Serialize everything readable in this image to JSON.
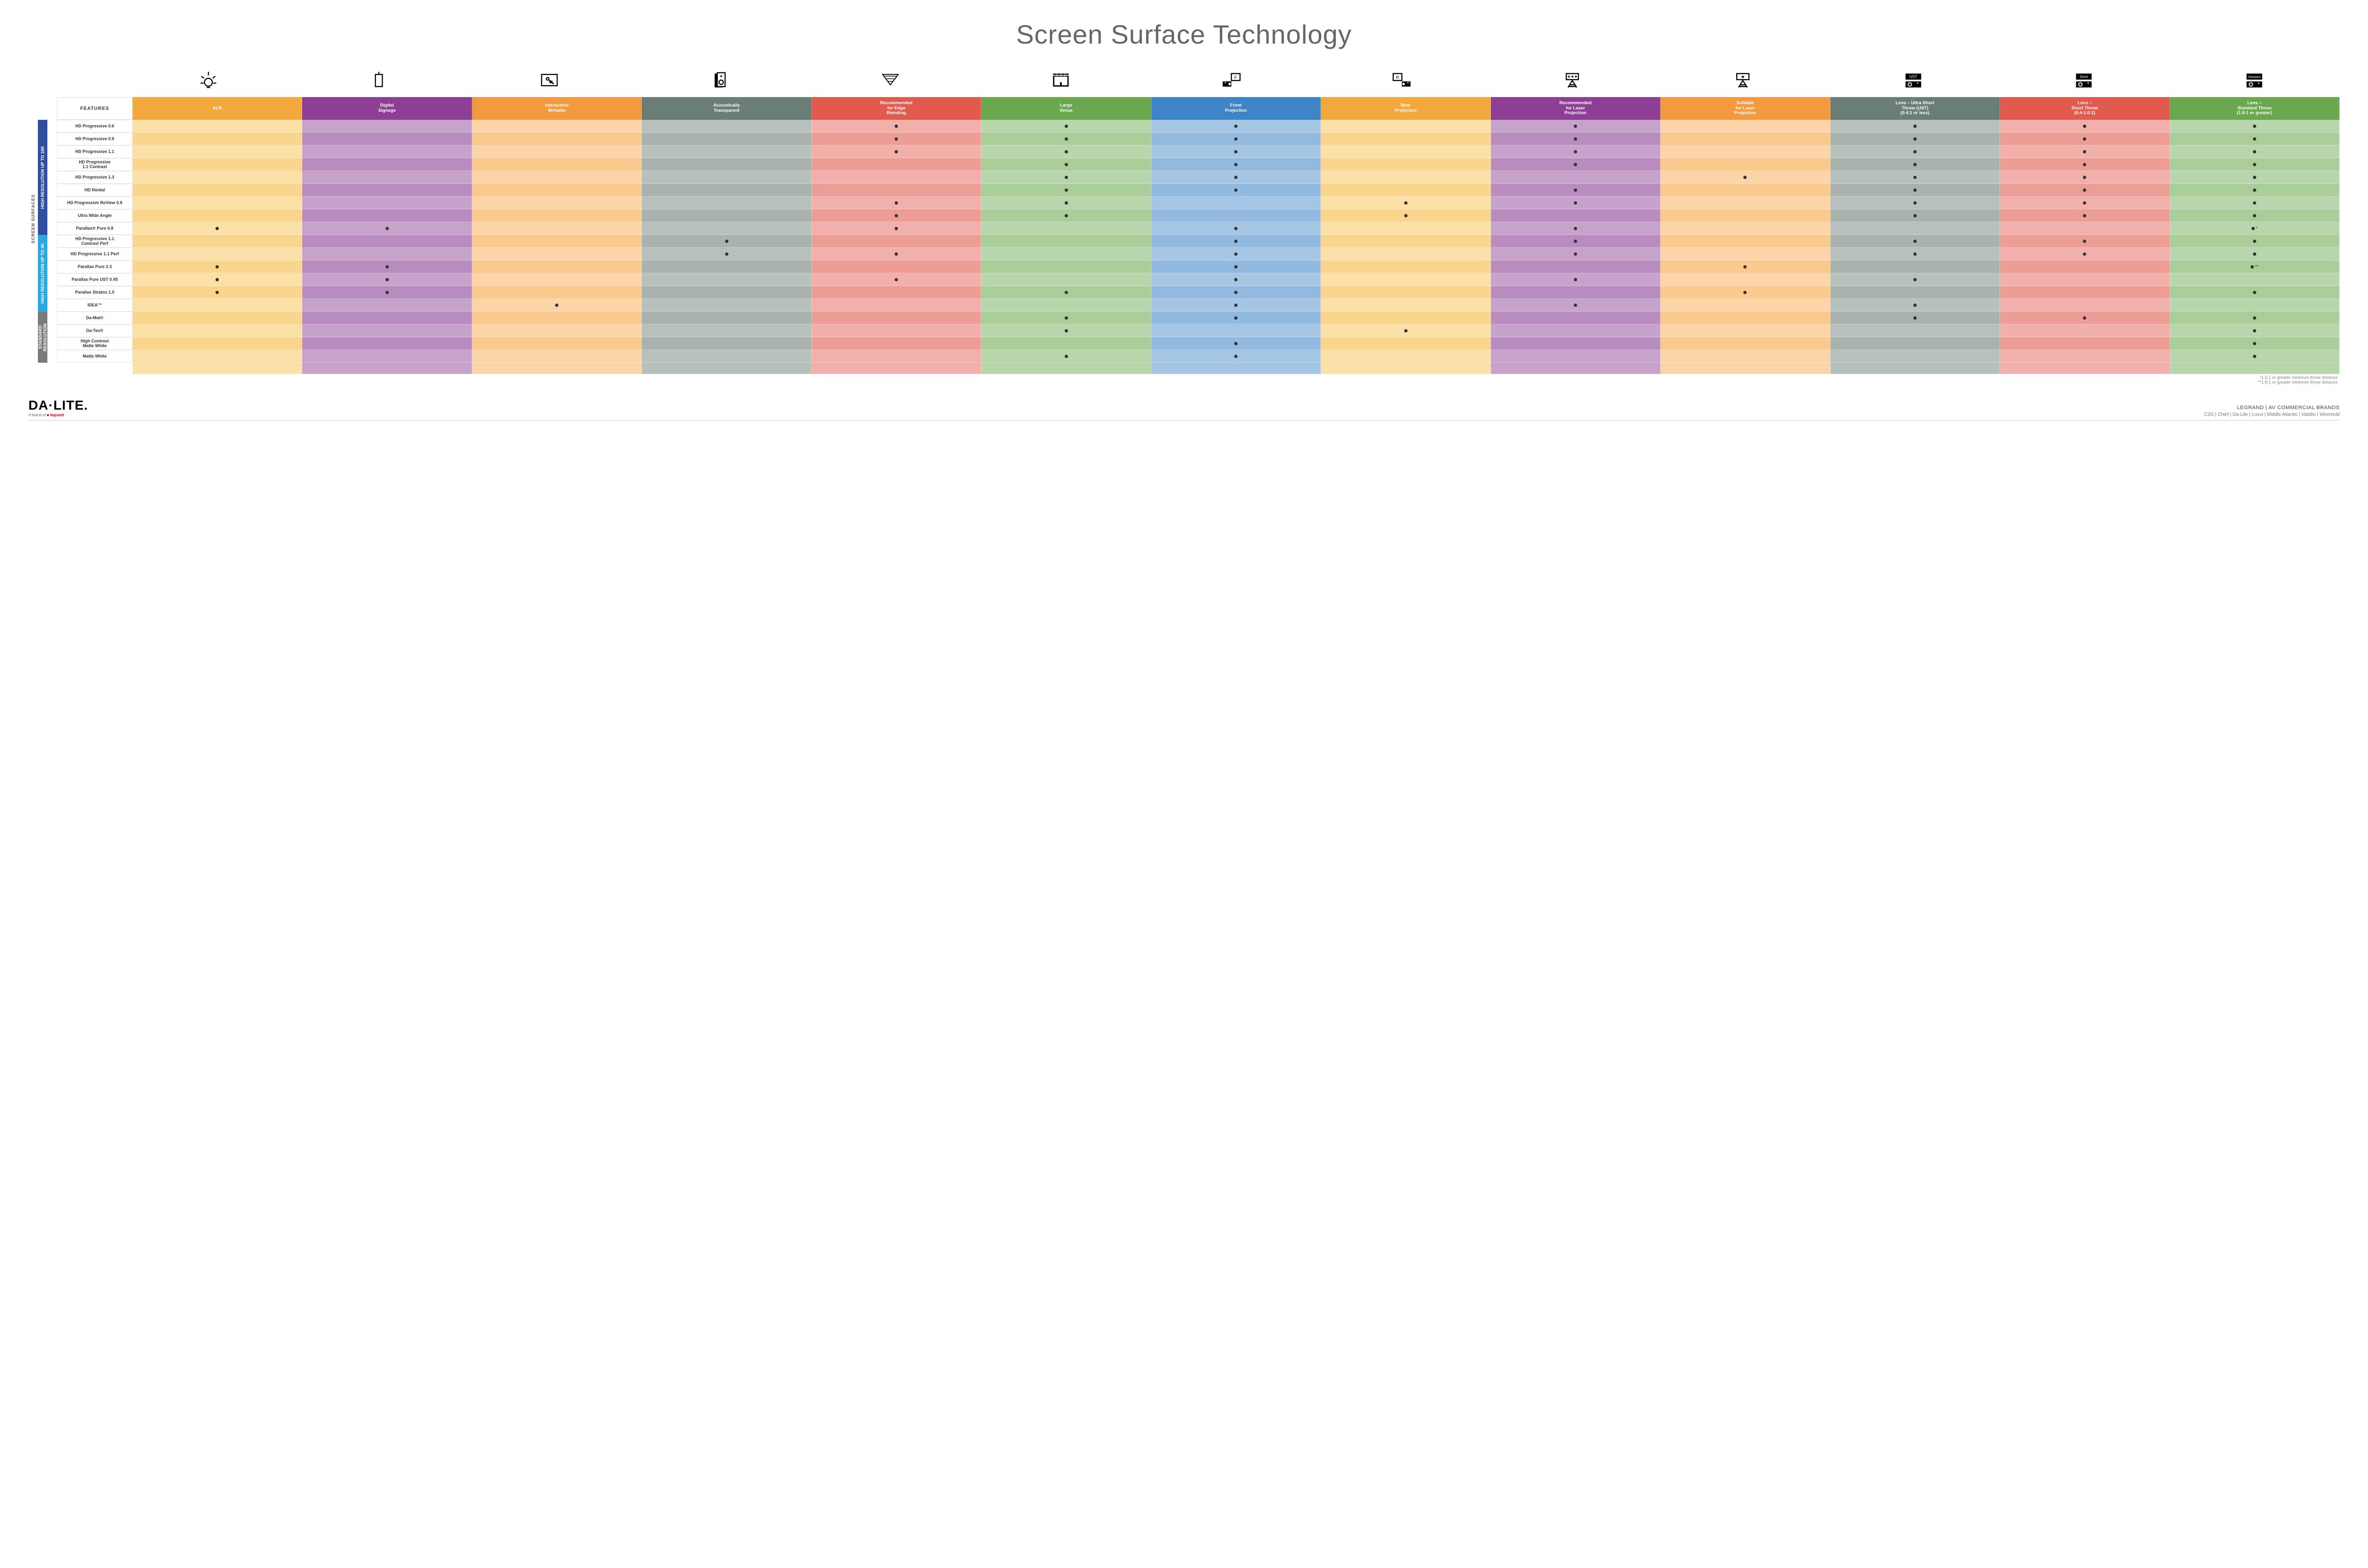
{
  "title": "Screen Surface Technology",
  "features_label": "FEATURES",
  "outer_side_label": "SCREEN SURFACES",
  "columns": [
    {
      "id": "alr",
      "label": "ALR",
      "bg": "#f2a83c",
      "shades": [
        "#fbe0a7",
        "#f9d58e"
      ],
      "icon": "bulb"
    },
    {
      "id": "signage",
      "label": "Digital\nSignage",
      "bg": "#8e3e95",
      "shades": [
        "#c7a2cb",
        "#b98cbf"
      ],
      "icon": "sign"
    },
    {
      "id": "interactive",
      "label": "Interactive/\nWritable",
      "bg": "#f39a3e",
      "shades": [
        "#fbd5a7",
        "#f9c98e"
      ],
      "icon": "touch"
    },
    {
      "id": "acoustic",
      "label": "Acoustically\nTransparent",
      "bg": "#6b7d77",
      "shades": [
        "#b7c0bc",
        "#a8b3ae"
      ],
      "icon": "speaker"
    },
    {
      "id": "edge",
      "label": "Recommended\nfor Edge\nBlending",
      "bg": "#e05a4e",
      "shades": [
        "#f1b0a9",
        "#ec9e96"
      ],
      "icon": "blend"
    },
    {
      "id": "venue",
      "label": "Large\nVenue",
      "bg": "#6aa84f",
      "shades": [
        "#b8d6ab",
        "#aace9a"
      ],
      "icon": "stage"
    },
    {
      "id": "front",
      "label": "Front\nProjection",
      "bg": "#3d85c6",
      "shades": [
        "#a4c5e4",
        "#92b9de"
      ],
      "icon": "front"
    },
    {
      "id": "rear",
      "label": "Rear\nProjection",
      "bg": "#f2a83c",
      "shades": [
        "#fbe0a7",
        "#f9d58e"
      ],
      "icon": "rear"
    },
    {
      "id": "reclaser",
      "label": "Recommended\nfor Laser\nProjection",
      "bg": "#8e3e95",
      "shades": [
        "#c7a2cb",
        "#b98cbf"
      ],
      "icon": "laser3"
    },
    {
      "id": "suitlaser",
      "label": "Suitable\nfor Laser\nProjection",
      "bg": "#f39a3e",
      "shades": [
        "#fbd5a7",
        "#f9c98e"
      ],
      "icon": "laser1"
    },
    {
      "id": "ust",
      "label": "Lens – Ultra Short\nThrow (UST)\n(0.4:1 or less)",
      "bg": "#6b7d77",
      "shades": [
        "#b7c0bc",
        "#a8b3ae"
      ],
      "icon": "ust"
    },
    {
      "id": "short",
      "label": "Lens –\nShort Throw\n(0.4-1.0:1)",
      "bg": "#e05a4e",
      "shades": [
        "#f1b0a9",
        "#ec9e96"
      ],
      "icon": "short"
    },
    {
      "id": "std",
      "label": "Lens –\nStandard Throw\n(1.0:1 or greater)",
      "bg": "#6aa84f",
      "shades": [
        "#b8d6ab",
        "#aace9a"
      ],
      "icon": "standard"
    }
  ],
  "groups": [
    {
      "label": "HIGH RESOLUTION UP TO 16K",
      "bg": "#2f4f9e",
      "rows": [
        {
          "name": "HD Progressive 0.6",
          "marks": {
            "edge": 1,
            "venue": 1,
            "front": 1,
            "reclaser": 1,
            "ust": 1,
            "short": 1,
            "std": 1
          }
        },
        {
          "name": "HD Progressive 0.9",
          "marks": {
            "edge": 1,
            "venue": 1,
            "front": 1,
            "reclaser": 1,
            "ust": 1,
            "short": 1,
            "std": 1
          }
        },
        {
          "name": "HD Progressive 1.1",
          "marks": {
            "edge": 1,
            "venue": 1,
            "front": 1,
            "reclaser": 1,
            "ust": 1,
            "short": 1,
            "std": 1
          }
        },
        {
          "name": "HD Progressive\n1.1 Contrast",
          "marks": {
            "venue": 1,
            "front": 1,
            "reclaser": 1,
            "ust": 1,
            "short": 1,
            "std": 1
          }
        },
        {
          "name": "HD Progressive 1.3",
          "marks": {
            "venue": 1,
            "front": 1,
            "suitlaser": 1,
            "ust": 1,
            "short": 1,
            "std": 1
          }
        },
        {
          "name": "HD Rental",
          "marks": {
            "venue": 1,
            "front": 1,
            "reclaser": 1,
            "ust": 1,
            "short": 1,
            "std": 1
          }
        },
        {
          "name": "HD Progressive ReView 0.9",
          "marks": {
            "edge": 1,
            "venue": 1,
            "rear": 1,
            "reclaser": 1,
            "ust": 1,
            "short": 1,
            "std": 1
          }
        },
        {
          "name": "Ultra Wide Angle",
          "marks": {
            "edge": 1,
            "venue": 1,
            "rear": 1,
            "ust": 1,
            "short": 1,
            "std": 1
          }
        },
        {
          "name": "Parallax® Pure 0.8",
          "marks": {
            "alr": 1,
            "signage": 1,
            "edge": 1,
            "front": 1,
            "reclaser": 1,
            "std": "●*"
          }
        }
      ]
    },
    {
      "label": "HIGH RESOLUTION UP TO 4K",
      "bg": "#2aa9e0",
      "rows": [
        {
          "name": "HD Progressive 1.1\nContrast Perf",
          "marks": {
            "acoustic": 1,
            "front": 1,
            "reclaser": 1,
            "ust": 1,
            "short": 1,
            "std": 1
          }
        },
        {
          "name": "HD Progressive 1.1 Perf",
          "marks": {
            "acoustic": 1,
            "edge": 1,
            "front": 1,
            "reclaser": 1,
            "ust": 1,
            "short": 1,
            "std": 1
          }
        },
        {
          "name": "Parallax Pure 2.3",
          "marks": {
            "alr": 1,
            "signage": 1,
            "front": 1,
            "suitlaser": 1,
            "std": "●**"
          }
        },
        {
          "name": "Parallax Pure UST 0.45",
          "marks": {
            "alr": 1,
            "signage": 1,
            "edge": 1,
            "front": 1,
            "reclaser": 1,
            "ust": 1
          }
        },
        {
          "name": "Parallax Stratos 1.0",
          "marks": {
            "alr": 1,
            "signage": 1,
            "venue": 1,
            "front": 1,
            "suitlaser": 1,
            "std": 1
          }
        },
        {
          "name": "IDEA™",
          "marks": {
            "interactive": 1,
            "front": 1,
            "reclaser": 1,
            "ust": 1
          }
        }
      ]
    },
    {
      "label": "STANDARD\nRESOLUTION",
      "bg": "#7a7a7a",
      "rows": [
        {
          "name": "Da-Mat®",
          "marks": {
            "venue": 1,
            "front": 1,
            "ust": 1,
            "short": 1,
            "std": 1
          }
        },
        {
          "name": "Da-Tex®",
          "marks": {
            "venue": 1,
            "rear": 1,
            "std": 1
          }
        },
        {
          "name": "High Contrast\nMatte White",
          "marks": {
            "front": 1,
            "std": 1
          }
        },
        {
          "name": "Matte White",
          "marks": {
            "venue": 1,
            "front": 1,
            "std": 1
          }
        }
      ]
    }
  ],
  "footnotes": [
    "*1.5:1 or greater minimum throw distance",
    "**1.8:1 or greater minimum throw distance"
  ],
  "footer": {
    "brand": "DA·LITE.",
    "brand_sub_prefix": "A brand of ",
    "brand_sub_logo": "legrand",
    "right1": "LEGRAND | AV COMMERCIAL BRANDS",
    "right2": "C2G  |  Chief  |  Da-Lite  |  Luxul  |  Middle Atlantic  |  Vaddio  |  Wiremold"
  }
}
